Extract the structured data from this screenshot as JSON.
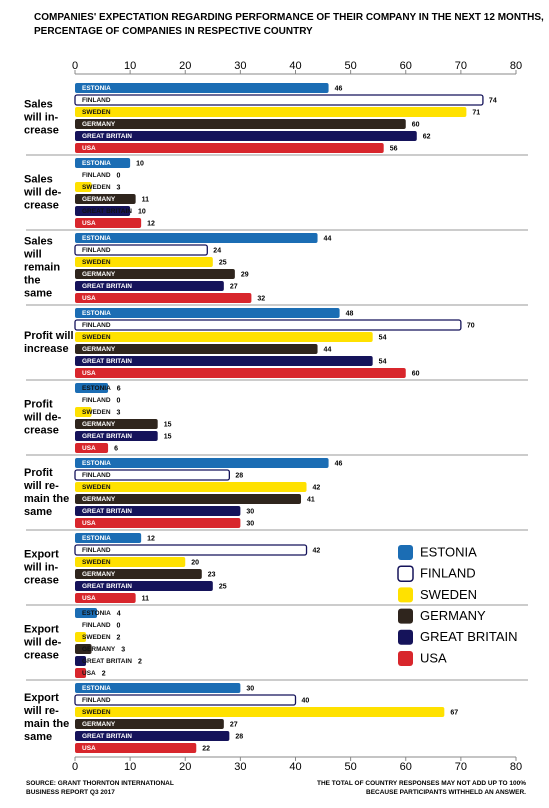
{
  "chart_data": {
    "type": "bar",
    "orientation": "horizontal",
    "title": "COMPANIES' EXPECTATION REGARDING PERFORMANCE OF THEIR COMPANY IN THE NEXT 12 MONTHS,\nPERCENTAGE OF COMPANIES IN RESPECTIVE COUNTRY",
    "categories": [
      "Sales\nwill in-\ncrease",
      "Sales\nwill de-\ncrease",
      "Sales\nwill\nremain\nthe\nsame",
      "Profit will\nincrease",
      "Profit\nwill de-\ncrease",
      "Profit\nwill re-\nmain the\nsame",
      "Export\nwill in-\ncrease",
      "Export\nwill de-\ncrease",
      "Export\nwill re-\nmain the\nsame"
    ],
    "series": [
      {
        "name": "ESTONIA",
        "color": "#1b6db4",
        "values": [
          46,
          10,
          44,
          48,
          6,
          46,
          12,
          4,
          30
        ]
      },
      {
        "name": "FINLAND",
        "color": "#ffffff",
        "values": [
          74,
          0,
          24,
          70,
          0,
          28,
          42,
          0,
          40
        ]
      },
      {
        "name": "SWEDEN",
        "color": "#ffe100",
        "values": [
          71,
          3,
          25,
          54,
          3,
          42,
          20,
          2,
          67
        ]
      },
      {
        "name": "GERMANY",
        "color": "#2f251d",
        "values": [
          60,
          11,
          29,
          44,
          15,
          41,
          23,
          3,
          27
        ]
      },
      {
        "name": "GREAT BRITAIN",
        "color": "#15135a",
        "values": [
          62,
          10,
          27,
          54,
          15,
          30,
          25,
          2,
          28
        ]
      },
      {
        "name": "USA",
        "color": "#d8262c",
        "values": [
          56,
          12,
          32,
          60,
          6,
          30,
          11,
          2,
          22
        ]
      }
    ],
    "xlim": [
      0,
      80
    ],
    "xticks": [
      0,
      10,
      20,
      30,
      40,
      50,
      60,
      70,
      80
    ],
    "legend": "right",
    "source": "SOURCE: GRANT THORNTON INTERNATIONAL\nBUSINESS REPORT Q3 2017",
    "note": "THE TOTAL OF COUNTRY RESPONSES MAY NOT ADD UP TO 100%\nBECAUSE PARTICIPANTS WITHHELD AN ANSWER."
  }
}
